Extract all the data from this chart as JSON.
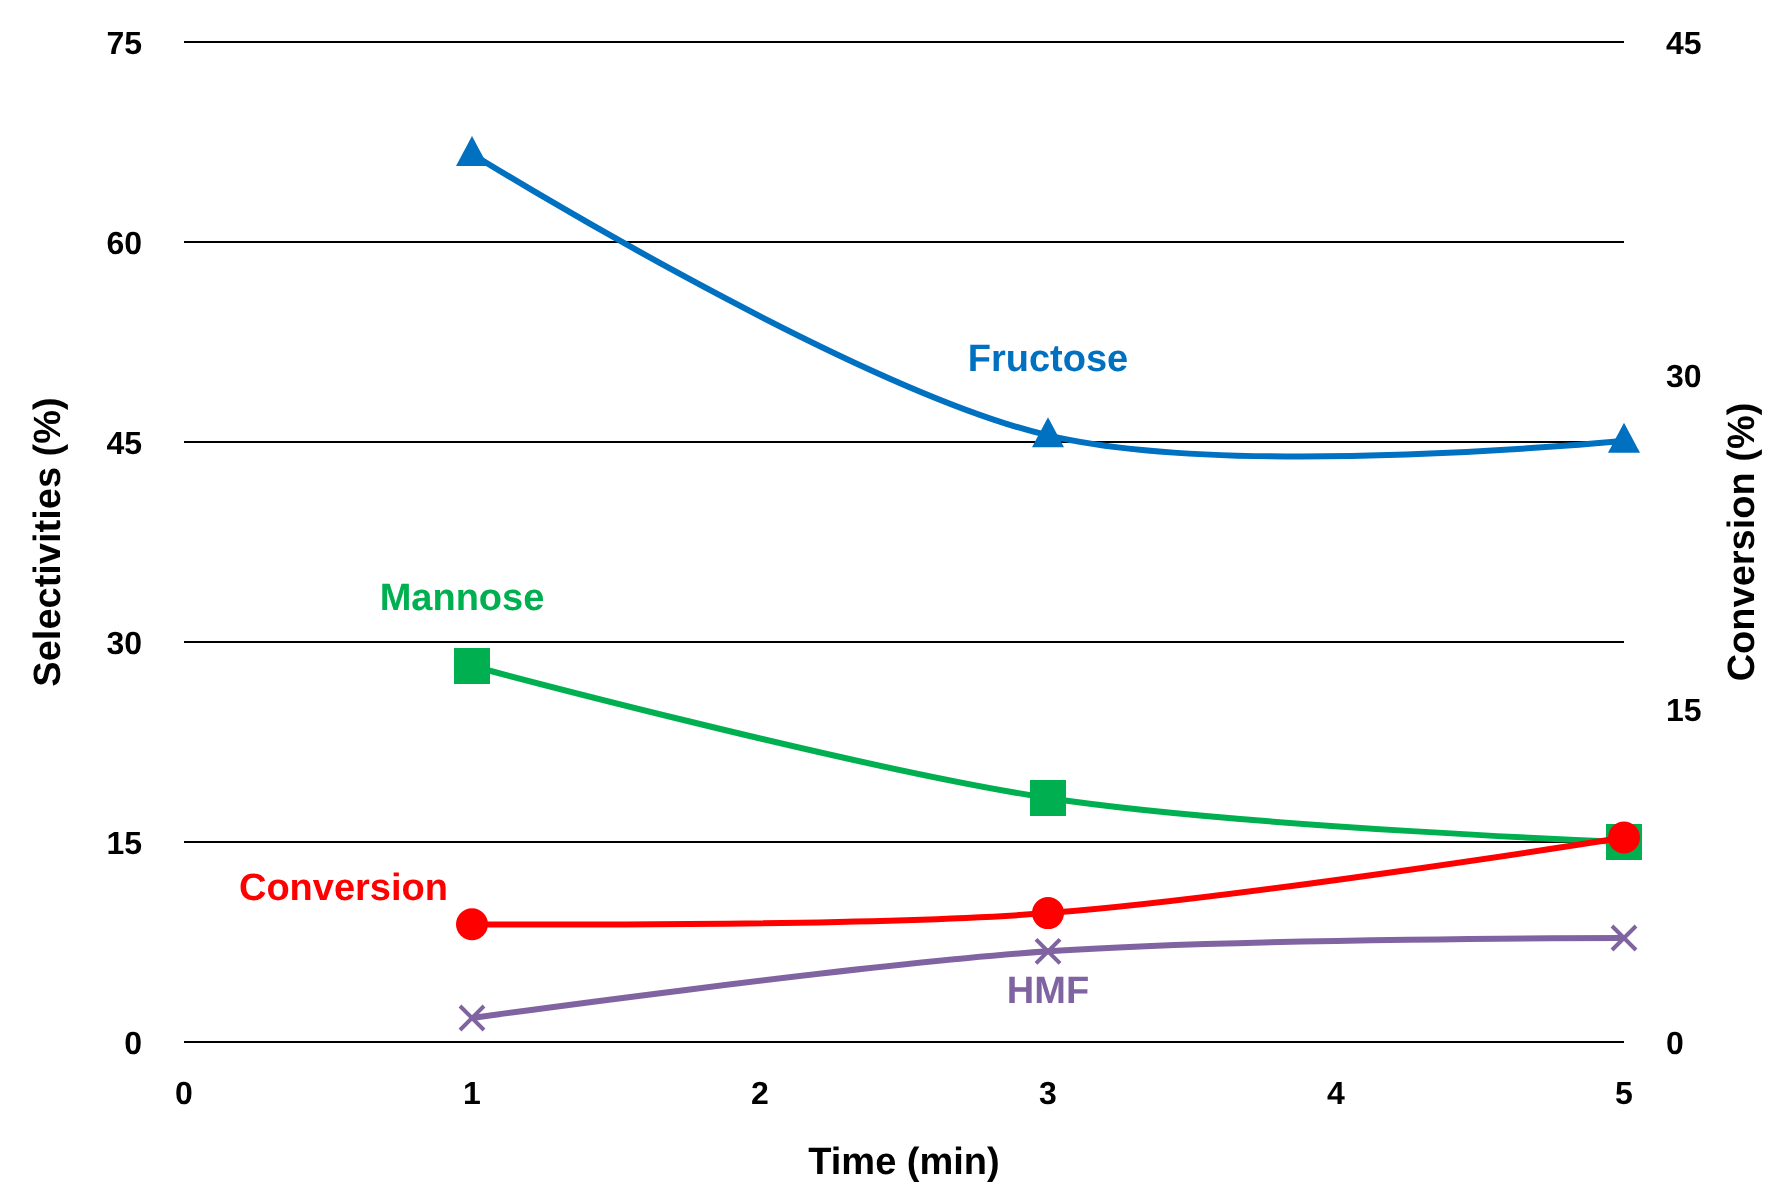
{
  "chart_data": {
    "type": "line",
    "xlabel": "Time (min)",
    "ylabel": "Selectivities (%)",
    "y2label": "Conversion (%)",
    "xlim": [
      0,
      5
    ],
    "xticks": [
      0,
      1,
      2,
      3,
      4,
      5
    ],
    "ylim": [
      0,
      75
    ],
    "yticks": [
      0,
      15,
      30,
      45,
      60,
      75
    ],
    "y2lim": [
      0,
      45
    ],
    "y2ticks": [
      0,
      15,
      30,
      45
    ],
    "grid": "y",
    "series": [
      {
        "name": "Fructose",
        "color": "#0070c0",
        "marker": "triangle",
        "x": [
          1,
          3,
          5
        ],
        "values": [
          66.6,
          45.5,
          45.1
        ]
      },
      {
        "name": "Mannose",
        "color": "#00b050",
        "marker": "square",
        "x": [
          1,
          3,
          5
        ],
        "values": [
          28.2,
          18.3,
          15
        ]
      },
      {
        "name": "Conversion",
        "color": "#ff0000",
        "marker": "circle",
        "axis": "y2",
        "x": [
          1,
          3,
          5
        ],
        "values": [
          5.3,
          5.8,
          9.2
        ]
      },
      {
        "name": "HMF",
        "color": "#8064a2",
        "marker": "cross",
        "x": [
          1,
          3,
          5
        ],
        "values": [
          1.8,
          6.8,
          7.8
        ]
      }
    ]
  }
}
